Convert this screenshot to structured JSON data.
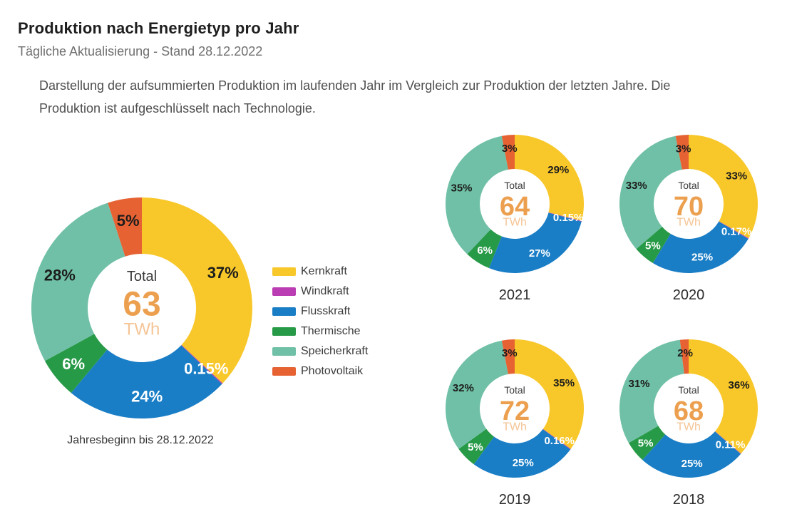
{
  "page": {
    "title": "Produktion nach Energietyp pro Jahr",
    "subtitle": "Tägliche Aktualisierung - Stand 28.12.2022",
    "description_line1": "Darstellung der aufsummierten Produktion im laufenden Jahr im Vergleich zur Produktion der letzten Jahre. Die",
    "description_line2": "Produktion ist aufgeschlüsselt nach Technologie."
  },
  "colors": {
    "background": "#ffffff",
    "center_number": "#eca04f",
    "center_unit": "#f4c596",
    "center_label": "#3a3a3a",
    "dark_slice_label": "#1c1c1c",
    "light_slice_label": "#ffffff"
  },
  "legend": {
    "items": [
      {
        "key": "kernkraft",
        "label": "Kernkraft",
        "color": "#f8c729",
        "slice_label_color": "#1c1c1c"
      },
      {
        "key": "windkraft",
        "label": "Windkraft",
        "color": "#bb3db3",
        "slice_label_color": "#ffffff"
      },
      {
        "key": "flusskraft",
        "label": "Flusskraft",
        "color": "#1a7ec6",
        "slice_label_color": "#ffffff"
      },
      {
        "key": "thermische",
        "label": "Thermische",
        "color": "#279a48",
        "slice_label_color": "#ffffff"
      },
      {
        "key": "speicherkraft",
        "label": "Speicherkraft",
        "color": "#6fc0a6",
        "slice_label_color": "#1c1c1c"
      },
      {
        "key": "photovoltaik",
        "label": "Photovoltaik",
        "color": "#e66233",
        "slice_label_color": "#1c1c1c"
      }
    ]
  },
  "chart_data": [
    {
      "type": "pie",
      "subtype": "donut",
      "title": "Jahresbeginn bis 28.12.2022",
      "center_label": "Total",
      "total_value": "63",
      "unit": "TWh",
      "legend_position": "right",
      "categories": [
        "Kernkraft",
        "Windkraft",
        "Flusskraft",
        "Thermische",
        "Speicherkraft",
        "Photovoltaik"
      ],
      "values_percent": [
        37,
        0.15,
        24,
        6,
        28,
        5
      ],
      "slice_labels": [
        "37%",
        "0.15%",
        "24%",
        "6%",
        "28%",
        "5%"
      ]
    },
    {
      "type": "pie",
      "subtype": "donut",
      "title": "2021",
      "center_label": "Total",
      "total_value": "64",
      "unit": "TWh",
      "categories": [
        "Kernkraft",
        "Windkraft",
        "Flusskraft",
        "Thermische",
        "Speicherkraft",
        "Photovoltaik"
      ],
      "values_percent": [
        29,
        0.15,
        27,
        6,
        35,
        3
      ],
      "slice_labels": [
        "29%",
        "0.15%",
        "27%",
        "6%",
        "35%",
        "3%"
      ]
    },
    {
      "type": "pie",
      "subtype": "donut",
      "title": "2020",
      "center_label": "Total",
      "total_value": "70",
      "unit": "TWh",
      "categories": [
        "Kernkraft",
        "Windkraft",
        "Flusskraft",
        "Thermische",
        "Speicherkraft",
        "Photovoltaik"
      ],
      "values_percent": [
        33,
        0.17,
        25,
        5,
        33,
        3
      ],
      "slice_labels": [
        "33%",
        "0.17%",
        "25%",
        "5%",
        "33%",
        "3%"
      ]
    },
    {
      "type": "pie",
      "subtype": "donut",
      "title": "2019",
      "center_label": "Total",
      "total_value": "72",
      "unit": "TWh",
      "categories": [
        "Kernkraft",
        "Windkraft",
        "Flusskraft",
        "Thermische",
        "Speicherkraft",
        "Photovoltaik"
      ],
      "values_percent": [
        35,
        0.16,
        25,
        5,
        32,
        3
      ],
      "slice_labels": [
        "35%",
        "0.16%",
        "25%",
        "5%",
        "32%",
        "3%"
      ]
    },
    {
      "type": "pie",
      "subtype": "donut",
      "title": "2018",
      "center_label": "Total",
      "total_value": "68",
      "unit": "TWh",
      "categories": [
        "Kernkraft",
        "Windkraft",
        "Flusskraft",
        "Thermische",
        "Speicherkraft",
        "Photovoltaik"
      ],
      "values_percent": [
        36,
        0.11,
        25,
        5,
        31,
        2
      ],
      "slice_labels": [
        "36%",
        "0.11%",
        "25%",
        "5%",
        "31%",
        "2%"
      ]
    }
  ]
}
